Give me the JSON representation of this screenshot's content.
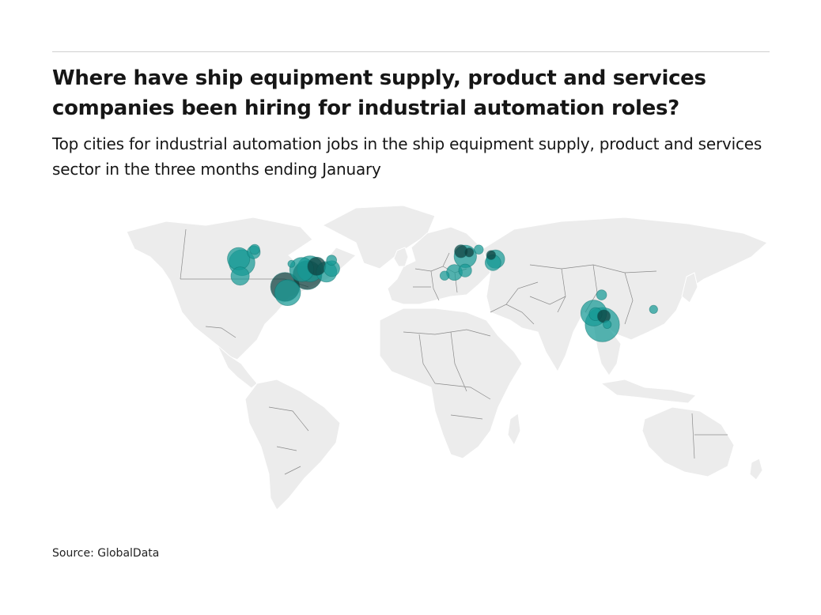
{
  "header": {
    "title": "Where have ship equipment supply, product and services companies been hiring for industrial automation roles?",
    "subtitle": "Top cities for industrial automation jobs in the ship equipment supply, product and services sector in the three months ending January"
  },
  "footer": {
    "source": "Source: GlobalData"
  },
  "colors": {
    "bubble": "#169a96",
    "bubble_dark": "#0d3f3d",
    "land": "#ececec",
    "border": "#8a8a8a"
  },
  "map": {
    "type": "proportional-symbol world map",
    "locations": [
      {
        "region": "North America",
        "lat": 47.6,
        "lon": -122.3,
        "size": 3,
        "tone": "normal"
      },
      {
        "region": "North America",
        "lat": 45.5,
        "lon": -120.5,
        "size": 4,
        "tone": "normal"
      },
      {
        "region": "North America",
        "lat": 38.5,
        "lon": -121.5,
        "size": 2,
        "tone": "normal"
      },
      {
        "region": "North America",
        "lat": 51.0,
        "lon": -114.0,
        "size": 1,
        "tone": "normal"
      },
      {
        "region": "North America",
        "lat": 52.5,
        "lon": -113.5,
        "size": 0.6,
        "tone": "normal"
      },
      {
        "region": "North America",
        "lat": 32.8,
        "lon": -96.8,
        "size": 5,
        "tone": "dark"
      },
      {
        "region": "North America",
        "lat": 29.8,
        "lon": -95.4,
        "size": 4,
        "tone": "normal"
      },
      {
        "region": "North America",
        "lat": 41.9,
        "lon": -87.6,
        "size": 3.5,
        "tone": "normal"
      },
      {
        "region": "North America",
        "lat": 42.3,
        "lon": -83.0,
        "size": 4,
        "tone": "normal"
      },
      {
        "region": "North America",
        "lat": 39.0,
        "lon": -84.5,
        "size": 5,
        "tone": "dark"
      },
      {
        "region": "North America",
        "lat": 40.7,
        "lon": -74.0,
        "size": 2.5,
        "tone": "normal"
      },
      {
        "region": "North America",
        "lat": 43.6,
        "lon": -79.4,
        "size": 2,
        "tone": "dark"
      },
      {
        "region": "North America",
        "lat": 42.4,
        "lon": -71.1,
        "size": 1.5,
        "tone": "normal"
      },
      {
        "region": "North America",
        "lat": 46.8,
        "lon": -71.2,
        "size": 0.6,
        "tone": "normal"
      },
      {
        "region": "North America",
        "lat": 44.9,
        "lon": -93.3,
        "size": 0.3,
        "tone": "normal"
      },
      {
        "region": "Europe",
        "lat": 51.5,
        "lon": -0.1,
        "size": 1,
        "tone": "dark"
      },
      {
        "region": "Europe",
        "lat": 48.8,
        "lon": 2.3,
        "size": 3,
        "tone": "normal"
      },
      {
        "region": "Europe",
        "lat": 50.9,
        "lon": 4.4,
        "size": 0.5,
        "tone": "dark"
      },
      {
        "region": "Europe",
        "lat": 52.4,
        "lon": 9.7,
        "size": 0.5,
        "tone": "normal"
      },
      {
        "region": "Europe",
        "lat": 47.4,
        "lon": 18.9,
        "size": 2,
        "tone": "normal"
      },
      {
        "region": "Europe",
        "lat": 45.5,
        "lon": 17.5,
        "size": 1.5,
        "tone": "normal"
      },
      {
        "region": "Europe",
        "lat": 49.5,
        "lon": 16.5,
        "size": 0.5,
        "tone": "dark"
      },
      {
        "region": "Europe",
        "lat": 41.4,
        "lon": 2.2,
        "size": 1,
        "tone": "normal"
      },
      {
        "region": "Europe",
        "lat": 40.4,
        "lon": -3.7,
        "size": 1.5,
        "tone": "normal"
      },
      {
        "region": "Europe",
        "lat": 38.7,
        "lon": -9.1,
        "size": 0.5,
        "tone": "normal"
      },
      {
        "region": "Asia",
        "lat": 19.1,
        "lon": 72.9,
        "size": 4,
        "tone": "normal"
      },
      {
        "region": "Asia",
        "lat": 18.5,
        "lon": 73.9,
        "size": 1,
        "tone": "normal"
      },
      {
        "region": "Asia",
        "lat": 17.4,
        "lon": 78.5,
        "size": 1,
        "tone": "dark"
      },
      {
        "region": "Asia",
        "lat": 13.0,
        "lon": 77.6,
        "size": 7,
        "tone": "normal"
      },
      {
        "region": "Asia",
        "lat": 13.1,
        "lon": 80.3,
        "size": 0.4,
        "tone": "normal"
      },
      {
        "region": "Asia",
        "lat": 28.6,
        "lon": 77.2,
        "size": 0.6,
        "tone": "normal"
      },
      {
        "region": "Asia",
        "lat": 21.0,
        "lon": 105.8,
        "size": 0.4,
        "tone": "normal"
      }
    ]
  }
}
